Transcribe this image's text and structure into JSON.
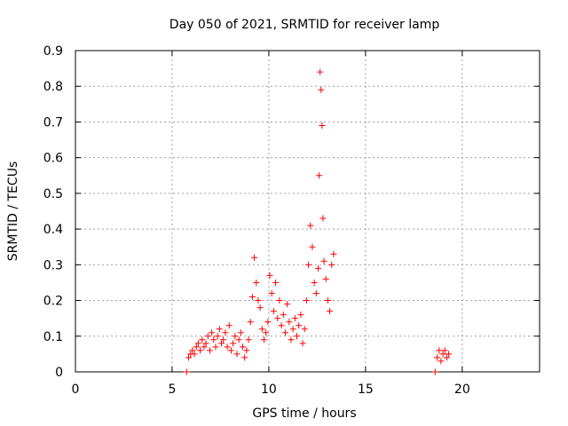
{
  "chart_data": {
    "type": "scatter",
    "title": "Day 050 of 2021, SRMTID for receiver lamp",
    "xlabel": "GPS time / hours",
    "ylabel": "SRMTID / TECUs",
    "xlim": [
      0,
      24
    ],
    "ylim": [
      0,
      0.9
    ],
    "xticks": [
      0,
      5,
      10,
      15,
      20
    ],
    "yticks": [
      0,
      0.1,
      0.2,
      0.3,
      0.4,
      0.5,
      0.6,
      0.7,
      0.8,
      0.9
    ],
    "xtick_labels": [
      "0",
      "5",
      "10",
      "15",
      "20"
    ],
    "ytick_labels": [
      "0",
      "0.1",
      "0.2",
      "0.3",
      "0.4",
      "0.5",
      "0.6",
      "0.7",
      "0.8",
      "0.9"
    ],
    "grid": true,
    "marker": "+",
    "color": "#ff0000",
    "series": [
      {
        "name": "SRMTID",
        "x": [
          5.75,
          5.85,
          5.95,
          6.05,
          6.15,
          6.25,
          6.35,
          6.45,
          6.55,
          6.65,
          6.75,
          6.85,
          6.95,
          7.05,
          7.15,
          7.25,
          7.35,
          7.45,
          7.55,
          7.65,
          7.75,
          7.85,
          7.95,
          8.05,
          8.15,
          8.25,
          8.35,
          8.45,
          8.55,
          8.65,
          8.75,
          8.85,
          8.95,
          9.05,
          9.15,
          9.25,
          9.35,
          9.45,
          9.55,
          9.65,
          9.75,
          9.85,
          9.95,
          10.05,
          10.15,
          10.25,
          10.35,
          10.45,
          10.55,
          10.65,
          10.75,
          10.85,
          10.95,
          11.05,
          11.15,
          11.25,
          11.35,
          11.45,
          11.55,
          11.65,
          11.75,
          11.85,
          11.95,
          12.05,
          12.15,
          12.25,
          12.35,
          12.45,
          12.55,
          12.6,
          12.65,
          12.7,
          12.75,
          12.8,
          12.85,
          12.95,
          13.05,
          13.15,
          13.25,
          13.35,
          18.6,
          18.7,
          18.8,
          18.9,
          19.0,
          19.1,
          19.2,
          19.3
        ],
        "y": [
          0.0,
          0.04,
          0.05,
          0.06,
          0.05,
          0.07,
          0.08,
          0.06,
          0.09,
          0.07,
          0.08,
          0.1,
          0.06,
          0.11,
          0.09,
          0.07,
          0.1,
          0.12,
          0.08,
          0.09,
          0.11,
          0.07,
          0.13,
          0.06,
          0.08,
          0.1,
          0.05,
          0.09,
          0.11,
          0.07,
          0.04,
          0.06,
          0.09,
          0.14,
          0.21,
          0.32,
          0.25,
          0.2,
          0.18,
          0.12,
          0.09,
          0.11,
          0.14,
          0.27,
          0.22,
          0.17,
          0.25,
          0.15,
          0.2,
          0.13,
          0.16,
          0.11,
          0.19,
          0.14,
          0.09,
          0.12,
          0.15,
          0.1,
          0.13,
          0.16,
          0.08,
          0.12,
          0.2,
          0.3,
          0.41,
          0.35,
          0.25,
          0.22,
          0.29,
          0.55,
          0.84,
          0.79,
          0.69,
          0.43,
          0.31,
          0.26,
          0.2,
          0.17,
          0.3,
          0.33,
          0.0,
          0.04,
          0.06,
          0.03,
          0.05,
          0.06,
          0.04,
          0.05
        ]
      }
    ]
  }
}
